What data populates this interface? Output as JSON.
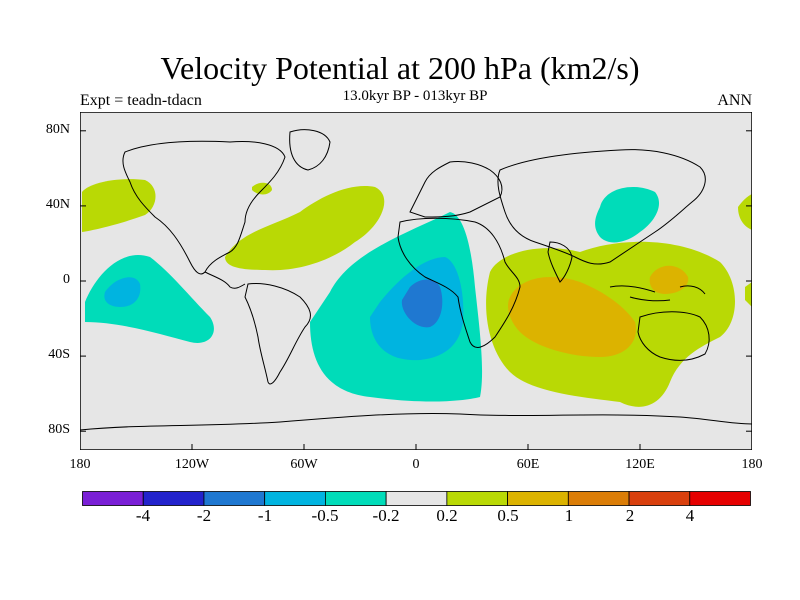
{
  "figure": {
    "title": "Velocity Potential at 200 hPa (km2/s)",
    "subtitle": "13.0kyr BP - 013kyr BP",
    "left_label": "Expt = teadn-tdacn",
    "right_label": "ANN"
  },
  "axes": {
    "lat_ticks": [
      "80N",
      "40N",
      "0",
      "40S",
      "80S"
    ],
    "lon_ticks": [
      "180",
      "120W",
      "60W",
      "0",
      "60E",
      "120E",
      "180"
    ]
  },
  "colorbar": {
    "colors": [
      "#7a1fd6",
      "#2323cc",
      "#1f78d1",
      "#00b4e0",
      "#00dcb9",
      "#e6e6e6",
      "#b9d905",
      "#dcb300",
      "#db7d07",
      "#d9400d",
      "#e60000"
    ],
    "labels": [
      "-4",
      "-2",
      "-1",
      "-0.5",
      "-0.2",
      "0.2",
      "0.5",
      "1",
      "2",
      "4"
    ]
  },
  "map": {
    "projection": "cylindrical-equidistant",
    "lon_range": [
      -180,
      180
    ],
    "lat_range": [
      -90,
      90
    ],
    "background_color": "#e6e6e6"
  }
}
